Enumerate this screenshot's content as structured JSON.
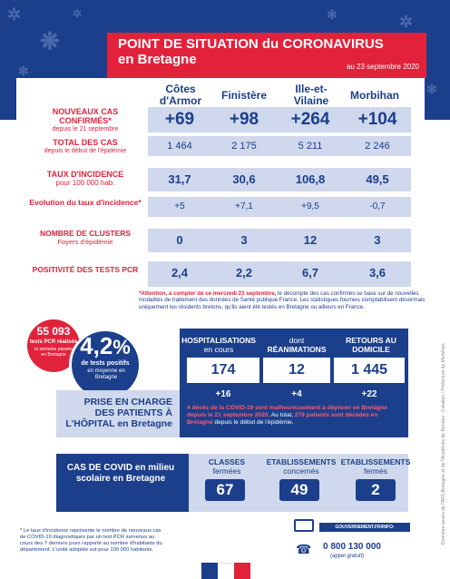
{
  "header": {
    "title_line1": "POINT DE SITUATION du CORONAVIRUS",
    "title_line2": "en Bretagne",
    "date": "au 23 septembre 2020"
  },
  "columns": [
    "Côtes d'Armor",
    "Finistère",
    "Ille-et-Vilaine",
    "Morbihan"
  ],
  "rows": {
    "nouveaux": {
      "label": "NOUVEAUX CAS CONFIRMÉS*",
      "sub": "depuis le 21 septembre",
      "values": [
        "+69",
        "+98",
        "+264",
        "+104"
      ]
    },
    "total": {
      "label": "TOTAL DES CAS",
      "sub": "depuis le début de l'épidémie",
      "values": [
        "1 464",
        "2 175",
        "5 211",
        "2 246"
      ]
    },
    "incidence": {
      "label": "TAUX D'INCIDENCE",
      "sub": "pour 100 000 hab.",
      "values": [
        "31,7",
        "30,6",
        "106,8",
        "49,5"
      ]
    },
    "evolution": {
      "label": "Evolution du taux d'incidence*",
      "values": [
        "+5",
        "+7,1",
        "+9,5",
        "-0,7"
      ]
    },
    "clusters": {
      "label": "NOMBRE DE CLUSTERS",
      "sub": "Foyers d'épidémie",
      "values": [
        "0",
        "3",
        "12",
        "3"
      ]
    },
    "positivite": {
      "label": "POSITIVITÉ DES TESTS PCR",
      "values": [
        "2,4",
        "2,2",
        "6,7",
        "3,6"
      ]
    }
  },
  "note": {
    "bold": "*Attention, à compter de ce mercredi 23 septembre,",
    "text": " le décompte des cas confirmés se base sur de nouvelles modalités de traitement des données de Santé publique France. Les statistiques fournies comptabilisent désormais uniquement les résidents bretons, qu'ils aient été testés en Bretagne ou ailleurs en France."
  },
  "tests": {
    "count": "55 093",
    "count_label": "tests PCR réalisés",
    "count_sub": "la semaine passée en Bretagne",
    "rate": "4,2",
    "rate_unit": "%",
    "rate_label": "de tests positifs",
    "rate_sub": "en moyenne en Bretagne"
  },
  "hospital": {
    "title": "PRISE EN CHARGE DES PATIENTS À L'HÔPITAL en Bretagne",
    "cols": [
      {
        "label1": "HOSPITALISATIONS",
        "label2": "en cours",
        "value": "174",
        "delta": "+16"
      },
      {
        "label1": "dont",
        "label2": "RÉANIMATIONS",
        "value": "12",
        "delta": "+4"
      },
      {
        "label1": "RETOURS AU",
        "label2": "DOMICILE",
        "value": "1 445",
        "delta": "+22"
      }
    ],
    "deaths_red": "4 décès de la COVID-19 sont malheureusement à déplorer en Bretagne depuis le 21 septembre 2020",
    "deaths_mid": ". Au total, ",
    "deaths_red2": "279 patients sont décédés en Bretagne",
    "deaths_end": " depuis le début de l'épidémie."
  },
  "school": {
    "title": "CAS DE COVID en milieu scolaire en Bretagne",
    "cols": [
      {
        "label1": "CLASSES",
        "label2": "fermées",
        "value": "67"
      },
      {
        "label1": "ETABLISSEMENTS",
        "label2": "concernés",
        "value": "49"
      },
      {
        "label1": "ETABLISSEMENTS",
        "label2": "fermés",
        "value": "2"
      }
    ]
  },
  "footnote": "* Le taux d'incidence représente le nombre de nouveaux cas de COVID-19 diagnostiqués par un test PCR survenus au cours des 7 derniers jours rapporté au nombre d'habitants du département. L'unité adoptée est pour 100 000 habitants.",
  "contact": {
    "url": "GOUVERNEMENT.FR/INFO-CORONAVIRUS",
    "phone": "0 800 130 000",
    "phone_sub": "(appel gratuit)"
  },
  "side_credit": "Données issues de l'ARS Bretagne et de l'Académie de Rennes - Création / Préfecture du Morbihan",
  "colors": {
    "navy": "#1c3f8c",
    "red": "#e2223b",
    "light": "#cfd8ec"
  }
}
